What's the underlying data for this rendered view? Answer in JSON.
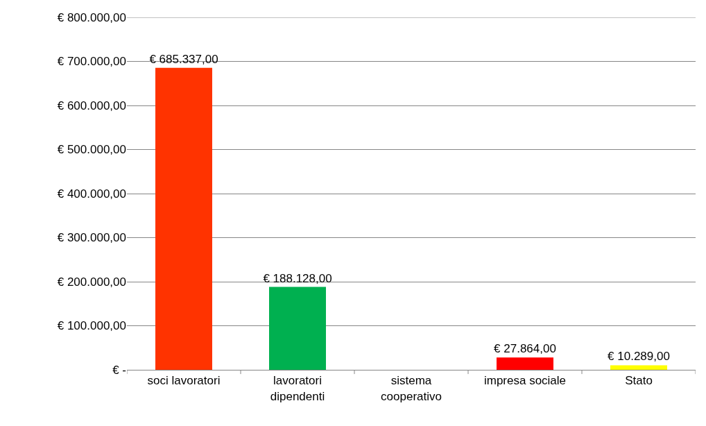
{
  "chart_data": {
    "type": "bar",
    "categories": [
      "soci lavoratori",
      "lavoratori dipendenti",
      "sistema cooperativo",
      "impresa sociale",
      "Stato"
    ],
    "values": [
      685337,
      188128,
      null,
      27864,
      10289
    ],
    "colors": [
      "#ff3300",
      "#00b050",
      "#7f7f7f",
      "#ff0000",
      "#ffff00"
    ],
    "value_labels": [
      "€ 685.337,00",
      "€ 188.128,00",
      null,
      "€ 27.864,00",
      "€ 10.289,00"
    ],
    "ylim": [
      0,
      800000
    ],
    "yticks": [
      {
        "value": 0,
        "label": "€ -"
      },
      {
        "value": 100000,
        "label": "€ 100.000,00"
      },
      {
        "value": 200000,
        "label": "€ 200.000,00"
      },
      {
        "value": 300000,
        "label": "€ 300.000,00"
      },
      {
        "value": 400000,
        "label": "€ 400.000,00"
      },
      {
        "value": 500000,
        "label": "€ 500.000,00"
      },
      {
        "value": 600000,
        "label": "€ 600.000,00"
      },
      {
        "value": 700000,
        "label": "€ 700.000,00"
      },
      {
        "value": 800000,
        "label": "€ 800.000,00"
      }
    ],
    "grid": "y"
  }
}
